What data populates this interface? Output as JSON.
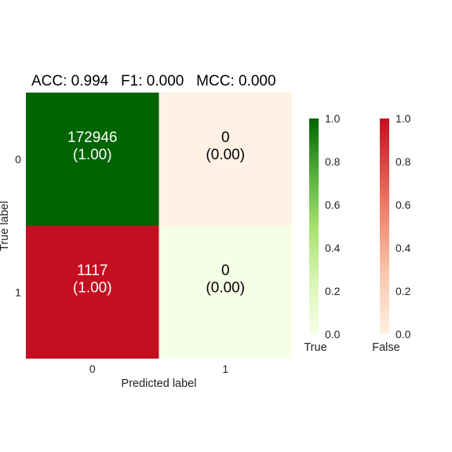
{
  "chart_data": {
    "type": "heatmap",
    "title": "ACC: 0.994   F1: 0.000   MCC: 0.000",
    "xlabel": "Predicted label",
    "ylabel": "True label",
    "x_tick_labels": [
      "0",
      "1"
    ],
    "y_tick_labels": [
      "0",
      "1"
    ],
    "counts": [
      [
        172946,
        0
      ],
      [
        1117,
        0
      ]
    ],
    "fractions": [
      [
        1.0,
        0.0
      ],
      [
        1.0,
        0.0
      ]
    ],
    "cell_text": [
      [
        "172946",
        "0"
      ],
      [
        "1117",
        "0"
      ]
    ],
    "cell_subtext": [
      [
        "(1.00)",
        "(0.00)"
      ],
      [
        "(1.00)",
        "(0.00)"
      ]
    ],
    "correct_mask": [
      [
        true,
        false
      ],
      [
        false,
        true
      ]
    ],
    "colorbars": [
      {
        "label": "True",
        "colormap": "Greens",
        "range": [
          0.0,
          1.0
        ],
        "ticks": [
          "0.0",
          "0.2",
          "0.4",
          "0.6",
          "0.8",
          "1.0"
        ]
      },
      {
        "label": "False",
        "colormap": "Reds",
        "range": [
          0.0,
          1.0
        ],
        "ticks": [
          "0.0",
          "0.2",
          "0.4",
          "0.6",
          "0.8",
          "1.0"
        ]
      }
    ],
    "colors": {
      "true_high": "#006400",
      "true_low": "#f7fee8",
      "false_high": "#c40f20",
      "false_low": "#fff1e4"
    },
    "grid": false
  }
}
